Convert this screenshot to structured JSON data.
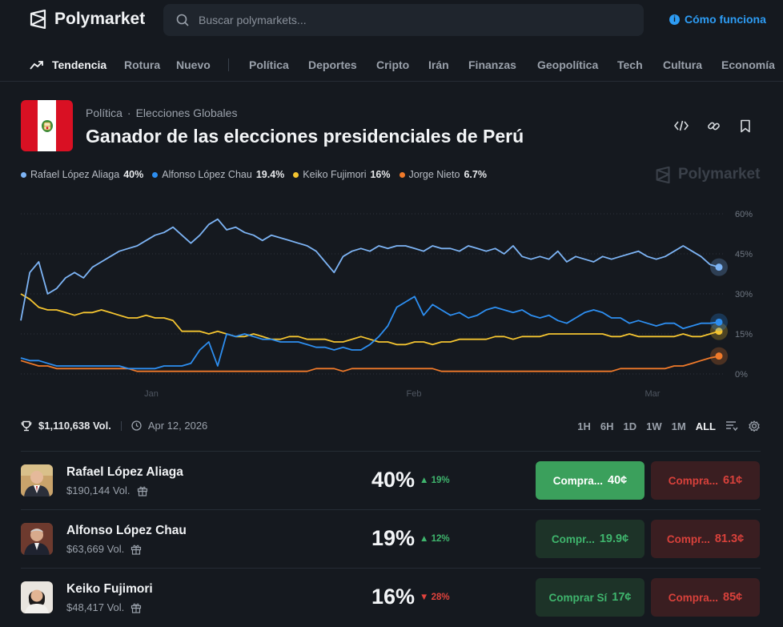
{
  "brand": {
    "name": "Polymarket"
  },
  "search": {
    "placeholder": "Buscar polymarkets..."
  },
  "header": {
    "how_it_works": "Cómo funciona"
  },
  "nav": {
    "items": [
      "Tendencia",
      "Rotura",
      "Nuevo",
      "Política",
      "Deportes",
      "Cripto",
      "Irán",
      "Finanzas",
      "Geopolítica",
      "Tech",
      "Cultura",
      "Economía"
    ]
  },
  "market": {
    "category": "Política",
    "subcategory": "Elecciones Globales",
    "title": "Ganador de las elecciones presidenciales de Perú",
    "volume": "$1,110,638 Vol.",
    "end_date": "Apr 12, 2026"
  },
  "legend": [
    {
      "name": "Rafael López Aliaga",
      "value": "40%",
      "color": "#7db4f5"
    },
    {
      "name": "Alfonso López Chau",
      "value": "19.4%",
      "color": "#2d8ef0"
    },
    {
      "name": "Keiko Fujimori",
      "value": "16%",
      "color": "#f4c430"
    },
    {
      "name": "Jorge Nieto",
      "value": "6.7%",
      "color": "#f07a2a"
    }
  ],
  "watermark": "Polymarket",
  "time_ranges": [
    "1H",
    "6H",
    "1D",
    "1W",
    "1M",
    "ALL"
  ],
  "chart_data": {
    "type": "line",
    "x_ticks": [
      "Jan",
      "Feb",
      "Mar"
    ],
    "y_ticks": [
      "0%",
      "15%",
      "30%",
      "45%",
      "60%"
    ],
    "ylim": [
      0,
      60
    ],
    "series": [
      {
        "name": "Rafael López Aliaga",
        "color": "#7db4f5",
        "values": [
          20,
          38,
          42,
          30,
          32,
          36,
          38,
          36,
          40,
          42,
          44,
          46,
          47,
          48,
          50,
          52,
          53,
          55,
          52,
          49,
          52,
          56,
          58,
          54,
          55,
          53,
          52,
          50,
          52,
          51,
          50,
          49,
          48,
          46,
          42,
          38,
          44,
          46,
          47,
          46,
          48,
          47,
          48,
          48,
          47,
          46,
          48,
          47,
          47,
          46,
          48,
          47,
          46,
          47,
          45,
          48,
          44,
          43,
          44,
          43,
          46,
          42,
          44,
          43,
          42,
          44,
          43,
          44,
          45,
          46,
          44,
          43,
          44,
          46,
          48,
          46,
          44,
          41,
          40
        ]
      },
      {
        "name": "Alfonso López Chau",
        "color": "#2d8ef0",
        "values": [
          6,
          5,
          5,
          4,
          3,
          3,
          3,
          3,
          3,
          3,
          3,
          3,
          2,
          2,
          2,
          2,
          3,
          3,
          3,
          4,
          9,
          12,
          3,
          15,
          14,
          15,
          14,
          13,
          13,
          12,
          12,
          12,
          11,
          10,
          10,
          9,
          10,
          9,
          9,
          11,
          14,
          18,
          25,
          27,
          29,
          22,
          26,
          24,
          22,
          23,
          21,
          22,
          24,
          25,
          24,
          23,
          24,
          22,
          21,
          22,
          20,
          19,
          21,
          23,
          24,
          23,
          21,
          21,
          19,
          20,
          19,
          18,
          19,
          19,
          17,
          18,
          19,
          19,
          19.4
        ]
      },
      {
        "name": "Keiko Fujimori",
        "color": "#f4c430",
        "values": [
          30,
          28,
          25,
          24,
          24,
          23,
          22,
          23,
          23,
          24,
          23,
          22,
          21,
          21,
          22,
          21,
          21,
          20,
          16,
          16,
          16,
          15,
          16,
          15,
          14,
          14,
          15,
          14,
          13,
          13,
          14,
          14,
          13,
          13,
          13,
          12,
          12,
          13,
          14,
          13,
          12,
          12,
          11,
          11,
          12,
          12,
          11,
          12,
          12,
          13,
          13,
          13,
          13,
          14,
          14,
          13,
          14,
          14,
          14,
          15,
          15,
          15,
          15,
          15,
          15,
          15,
          14,
          14,
          15,
          14,
          14,
          14,
          14,
          14,
          15,
          14,
          14,
          15,
          16
        ]
      },
      {
        "name": "Jorge Nieto",
        "color": "#f07a2a",
        "values": [
          5,
          4,
          3,
          3,
          2,
          2,
          2,
          2,
          2,
          2,
          2,
          2,
          2,
          1,
          1,
          1,
          1,
          1,
          1,
          1,
          1,
          1,
          1,
          1,
          1,
          1,
          1,
          1,
          1,
          1,
          1,
          1,
          1,
          2,
          2,
          2,
          1,
          2,
          2,
          2,
          2,
          2,
          2,
          2,
          2,
          2,
          2,
          1,
          1,
          1,
          1,
          1,
          1,
          1,
          1,
          1,
          1,
          1,
          1,
          1,
          1,
          1,
          1,
          1,
          1,
          1,
          1,
          2,
          2,
          2,
          2,
          2,
          2,
          3,
          3,
          4,
          5,
          6,
          6.7
        ]
      }
    ]
  },
  "outcomes": [
    {
      "name": "Rafael López Aliaga",
      "volume": "$190,144 Vol.",
      "pct": "40%",
      "delta": "19%",
      "delta_dir": "up",
      "yes_label": "Compra...",
      "yes_price": "40¢",
      "no_label": "Compra...",
      "no_price": "61¢"
    },
    {
      "name": "Alfonso López Chau",
      "volume": "$63,669 Vol.",
      "pct": "19%",
      "delta": "12%",
      "delta_dir": "up",
      "yes_label": "Compr...",
      "yes_price": "19.9¢",
      "no_label": "Compr...",
      "no_price": "81.3¢"
    },
    {
      "name": "Keiko Fujimori",
      "volume": "$48,417 Vol.",
      "pct": "16%",
      "delta": "28%",
      "delta_dir": "down",
      "yes_label": "Comprar Sí",
      "yes_price": "17¢",
      "no_label": "Compra...",
      "no_price": "85¢"
    }
  ]
}
